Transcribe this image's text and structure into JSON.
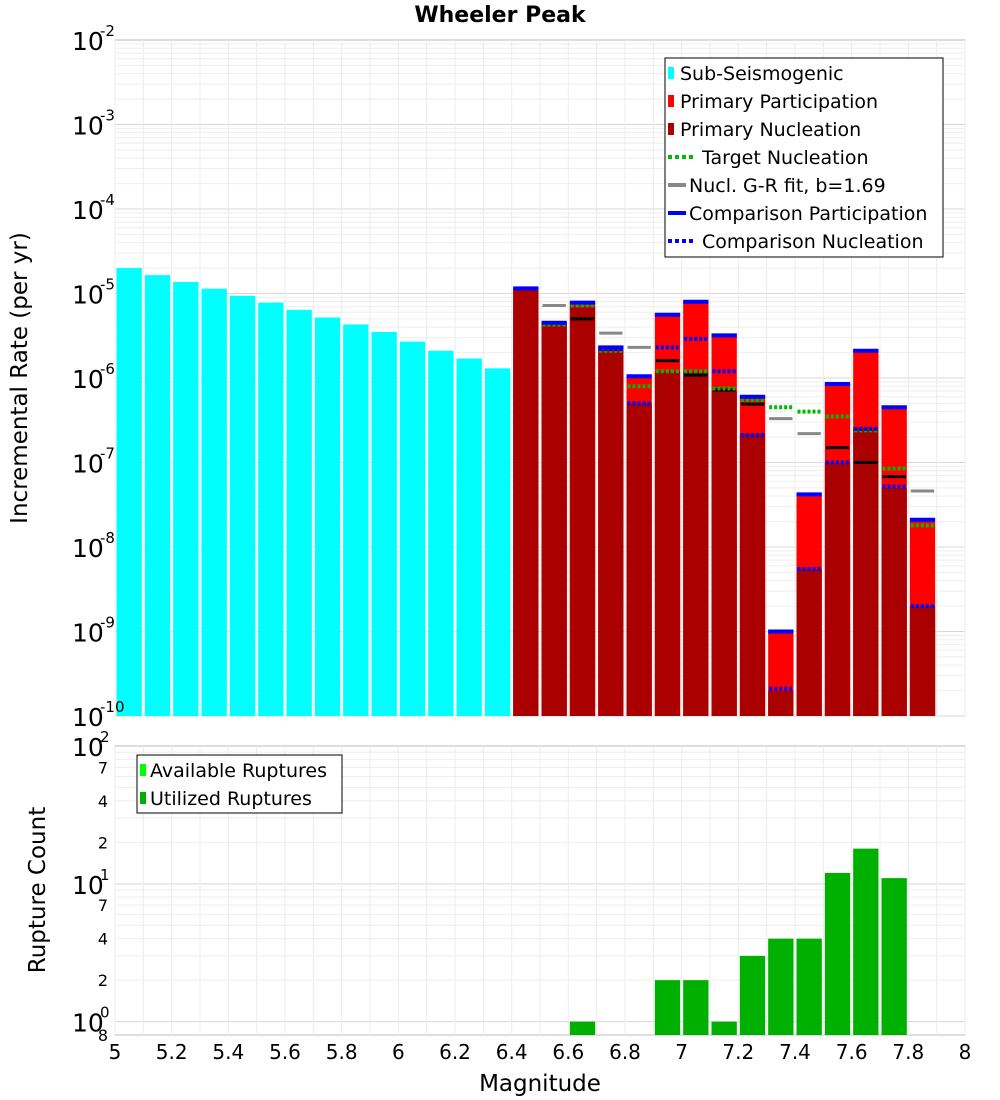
{
  "chart_data": [
    {
      "type": "bar",
      "title": "Wheeler Peak",
      "ylabel": "Incremental Rate (per yr)",
      "xlabel": "Magnitude",
      "xlim": [
        5,
        8
      ],
      "ylim": [
        1e-10,
        0.01
      ],
      "yscale": "log",
      "y_ticks": [
        {
          "base": "10",
          "exp": "-10"
        },
        {
          "base": "10",
          "exp": "-9"
        },
        {
          "base": "10",
          "exp": "-8"
        },
        {
          "base": "10",
          "exp": "-7"
        },
        {
          "base": "10",
          "exp": "-6"
        },
        {
          "base": "10",
          "exp": "-5"
        },
        {
          "base": "10",
          "exp": "-4"
        },
        {
          "base": "10",
          "exp": "-3"
        },
        {
          "base": "10",
          "exp": "-2"
        }
      ],
      "y_tick_values": [
        1e-10,
        1e-09,
        1e-08,
        1e-07,
        1e-06,
        1e-05,
        0.0001,
        0.001,
        0.01
      ],
      "legend": {
        "position": "top-right",
        "entries": [
          "Sub-Seismogenic",
          "Primary Participation",
          "Primary Nucleation",
          "Target Nucleation",
          "Nucl. G-R fit, b=1.69",
          "Comparison Participation",
          "Comparison Nucleation"
        ]
      },
      "colors": {
        "sub_seismogenic": "#00ffff",
        "primary_participation": "#ff0000",
        "primary_nucleation": "#aa0000",
        "target_nucleation": "#00bb00",
        "gr_fit": "#888888",
        "gr_fit_inner": "#000000",
        "comparison_participation": "#0000ff",
        "comparison_nucleation": "#0000ff"
      },
      "sub_seismogenic": {
        "x": [
          5.05,
          5.15,
          5.25,
          5.35,
          5.45,
          5.55,
          5.65,
          5.75,
          5.85,
          5.95,
          6.05,
          6.15,
          6.25,
          6.35
        ],
        "values": [
          2e-05,
          1.65e-05,
          1.37e-05,
          1.14e-05,
          9.4e-06,
          7.8e-06,
          6.4e-06,
          5.2e-06,
          4.3e-06,
          3.5e-06,
          2.7e-06,
          2.1e-06,
          1.7e-06,
          1.3e-06
        ]
      },
      "primary_participation": {
        "x": [
          6.45,
          6.55,
          6.65,
          6.75,
          6.85,
          6.95,
          7.05,
          7.15,
          7.25,
          7.35,
          7.45,
          7.55,
          7.65,
          7.75,
          7.85
        ],
        "values": [
          1.15e-05,
          4.5e-06,
          7.8e-06,
          2.3e-06,
          1e-06,
          5.6e-06,
          8e-06,
          3.2e-06,
          6e-07,
          1e-09,
          4e-08,
          8.5e-07,
          2.1e-06,
          4.5e-07,
          2e-08
        ]
      },
      "primary_nucleation": {
        "x": [
          6.45,
          6.55,
          6.65,
          6.75,
          6.85,
          6.95,
          7.05,
          7.15,
          7.25,
          7.35,
          7.45,
          7.55,
          7.65,
          7.75,
          7.85
        ],
        "values": [
          1.1e-05,
          4.3e-06,
          7e-06,
          2.2e-06,
          5e-07,
          1.2e-06,
          1.2e-06,
          7e-07,
          2.2e-07,
          2e-10,
          5.5e-09,
          1e-07,
          2.6e-07,
          5e-08,
          2e-09
        ]
      },
      "target_nucleation": {
        "x": [
          6.55,
          6.65,
          6.75,
          6.85,
          6.95,
          7.05,
          7.15,
          7.25,
          7.35,
          7.45,
          7.55,
          7.65,
          7.75,
          7.85
        ],
        "values": [
          4.3e-06,
          7.2e-06,
          2.1e-06,
          8e-07,
          1.2e-06,
          1.2e-06,
          7.5e-07,
          5.5e-07,
          4.5e-07,
          4e-07,
          3.5e-07,
          2.4e-07,
          8.5e-08,
          1.8e-08
        ]
      },
      "gr_fit": {
        "x": [
          6.55,
          6.65,
          6.75,
          6.85,
          6.95,
          7.05,
          7.15,
          7.25,
          7.35,
          7.45,
          7.55,
          7.65,
          7.75,
          7.85
        ],
        "values": [
          7.2e-06,
          5e-06,
          3.4e-06,
          2.3e-06,
          1.6e-06,
          1.08e-06,
          7.2e-07,
          4.9e-07,
          3.3e-07,
          2.2e-07,
          1.5e-07,
          1e-07,
          6.8e-08,
          4.6e-08
        ]
      },
      "comparison_participation": {
        "x": [
          6.45,
          6.55,
          6.65,
          6.75,
          6.85,
          6.95,
          7.05,
          7.15,
          7.25,
          7.35,
          7.45,
          7.55,
          7.65,
          7.75,
          7.85
        ],
        "values": [
          1.15e-05,
          4.5e-06,
          7.8e-06,
          2.3e-06,
          1.05e-06,
          5.6e-06,
          8e-06,
          3.2e-06,
          6e-07,
          1e-09,
          4.2e-08,
          8.5e-07,
          2.1e-06,
          4.5e-07,
          2.1e-08
        ]
      },
      "comparison_nucleation": {
        "x": [
          6.75,
          6.85,
          6.95,
          7.05,
          7.15,
          7.25,
          7.35,
          7.45,
          7.55,
          7.65,
          7.75,
          7.85
        ],
        "values": [
          2.2e-06,
          5e-07,
          2.3e-06,
          2.9e-06,
          1.2e-06,
          2.1e-07,
          2.1e-10,
          5.5e-09,
          1e-07,
          2.5e-07,
          5.2e-08,
          2e-09
        ]
      }
    },
    {
      "type": "bar",
      "ylabel": "Rupture Count",
      "xlabel": "Magnitude",
      "xlim": [
        5,
        8
      ],
      "ylim": [
        0.8,
        100
      ],
      "yscale": "log",
      "x_ticks": [
        "5",
        "5.2",
        "5.4",
        "5.6",
        "5.8",
        "6",
        "6.2",
        "6.4",
        "6.6",
        "6.8",
        "7",
        "7.2",
        "7.4",
        "7.6",
        "7.8",
        "8"
      ],
      "x_tick_values": [
        5,
        5.2,
        5.4,
        5.6,
        5.8,
        6,
        6.2,
        6.4,
        6.6,
        6.8,
        7,
        7.2,
        7.4,
        7.6,
        7.8,
        8
      ],
      "y_major_ticks": [
        {
          "base": "10",
          "exp": "2",
          "value": 100
        },
        {
          "base": "10",
          "exp": "1",
          "value": 10
        },
        {
          "base": "10",
          "exp": "0",
          "value": 1
        }
      ],
      "y_minor_ticks": [
        {
          "label": "7",
          "value": 70
        },
        {
          "label": "4",
          "value": 40
        },
        {
          "label": "2",
          "value": 20
        },
        {
          "label": "7",
          "value": 7
        },
        {
          "label": "4",
          "value": 4
        },
        {
          "label": "2",
          "value": 2
        },
        {
          "label": "8",
          "value": 0.8
        }
      ],
      "legend": {
        "position": "top-left",
        "entries": [
          "Available Ruptures",
          "Utilized Ruptures"
        ]
      },
      "colors": {
        "available": "#00ff00",
        "utilized": "#00b000"
      },
      "utilized_ruptures": {
        "x": [
          6.65,
          6.95,
          7.05,
          7.15,
          7.25,
          7.35,
          7.45,
          7.55,
          7.65,
          7.75
        ],
        "values": [
          1,
          2,
          2,
          1,
          3,
          4,
          4,
          12,
          18,
          11
        ]
      }
    }
  ]
}
